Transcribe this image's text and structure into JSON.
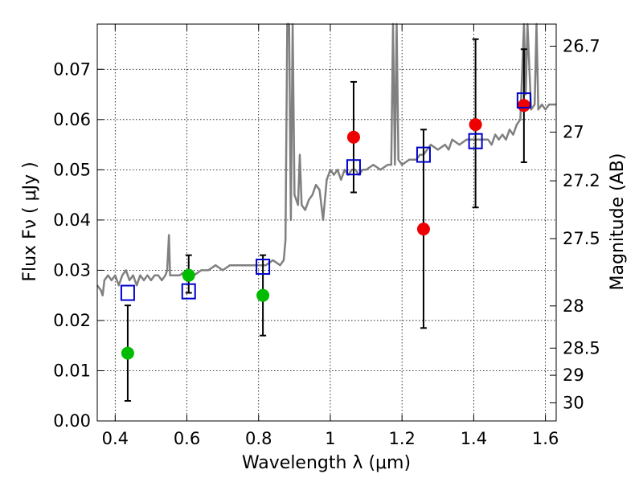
{
  "chart_data": {
    "type": "scatter",
    "title": "",
    "xlabel": "Wavelength  λ (μm)",
    "ylabel": "Flux  Fν  ( μJy )",
    "y2label": "Magnitude (AB)",
    "xlim": [
      0.35,
      1.63
    ],
    "ylim": [
      0.0,
      0.079
    ],
    "grid": true,
    "x_ticks": [
      0.4,
      0.6,
      0.8,
      1.0,
      1.2,
      1.4,
      1.6
    ],
    "x_tick_labels": [
      "0.4",
      "0.6",
      "0.8",
      "1",
      "1.2",
      "1.4",
      "1.6"
    ],
    "y_ticks": [
      0.0,
      0.01,
      0.02,
      0.03,
      0.04,
      0.05,
      0.06,
      0.07
    ],
    "y_tick_labels": [
      "0.00",
      "0.01",
      "0.02",
      "0.03",
      "0.04",
      "0.05",
      "0.06",
      "0.07"
    ],
    "y2_ticks": [
      {
        "label": "26.7",
        "flux": 0.0746
      },
      {
        "label": "27",
        "flux": 0.0575
      },
      {
        "label": "27.2",
        "flux": 0.0478
      },
      {
        "label": "27.5",
        "flux": 0.0363
      },
      {
        "label": "28",
        "flux": 0.0229
      },
      {
        "label": "28.5",
        "flux": 0.0145
      },
      {
        "label": "29",
        "flux": 0.0091
      },
      {
        "label": "30",
        "flux": 0.0036
      }
    ],
    "colors": {
      "spectrum": "#808080",
      "model": "#0000cc",
      "green": "#00bb00",
      "red": "#ee0000",
      "errorbar": "#000000"
    },
    "spectrum": [
      [
        0.35,
        0.027
      ],
      [
        0.36,
        0.026
      ],
      [
        0.365,
        0.025
      ],
      [
        0.37,
        0.028
      ],
      [
        0.38,
        0.029
      ],
      [
        0.39,
        0.028
      ],
      [
        0.4,
        0.029
      ],
      [
        0.41,
        0.027
      ],
      [
        0.42,
        0.029
      ],
      [
        0.43,
        0.03
      ],
      [
        0.44,
        0.028
      ],
      [
        0.45,
        0.029
      ],
      [
        0.46,
        0.027
      ],
      [
        0.47,
        0.029
      ],
      [
        0.48,
        0.028
      ],
      [
        0.49,
        0.029
      ],
      [
        0.5,
        0.028
      ],
      [
        0.51,
        0.029
      ],
      [
        0.52,
        0.029
      ],
      [
        0.53,
        0.028
      ],
      [
        0.54,
        0.029
      ],
      [
        0.545,
        0.03
      ],
      [
        0.55,
        0.037
      ],
      [
        0.553,
        0.029
      ],
      [
        0.56,
        0.029
      ],
      [
        0.58,
        0.029
      ],
      [
        0.6,
        0.03
      ],
      [
        0.62,
        0.029
      ],
      [
        0.64,
        0.03
      ],
      [
        0.66,
        0.03
      ],
      [
        0.68,
        0.031
      ],
      [
        0.7,
        0.03
      ],
      [
        0.72,
        0.031
      ],
      [
        0.74,
        0.031
      ],
      [
        0.76,
        0.031
      ],
      [
        0.78,
        0.031
      ],
      [
        0.8,
        0.031
      ],
      [
        0.82,
        0.031
      ],
      [
        0.84,
        0.032
      ],
      [
        0.86,
        0.031
      ],
      [
        0.87,
        0.032
      ],
      [
        0.875,
        0.036
      ],
      [
        0.88,
        0.079
      ],
      [
        0.885,
        0.079
      ],
      [
        0.89,
        0.04
      ],
      [
        0.895,
        0.079
      ],
      [
        0.9,
        0.045
      ],
      [
        0.91,
        0.043
      ],
      [
        0.915,
        0.053
      ],
      [
        0.92,
        0.043
      ],
      [
        0.93,
        0.042
      ],
      [
        0.94,
        0.044
      ],
      [
        0.95,
        0.045
      ],
      [
        0.96,
        0.047
      ],
      [
        0.97,
        0.046
      ],
      [
        0.98,
        0.04
      ],
      [
        0.99,
        0.048
      ],
      [
        1.0,
        0.05
      ],
      [
        1.01,
        0.049
      ],
      [
        1.02,
        0.05
      ],
      [
        1.03,
        0.048
      ],
      [
        1.04,
        0.05
      ],
      [
        1.05,
        0.049
      ],
      [
        1.06,
        0.05
      ],
      [
        1.07,
        0.05
      ],
      [
        1.08,
        0.049
      ],
      [
        1.09,
        0.05
      ],
      [
        1.1,
        0.05
      ],
      [
        1.12,
        0.051
      ],
      [
        1.14,
        0.05
      ],
      [
        1.16,
        0.051
      ],
      [
        1.17,
        0.051
      ],
      [
        1.175,
        0.079
      ],
      [
        1.18,
        0.051
      ],
      [
        1.185,
        0.079
      ],
      [
        1.19,
        0.052
      ],
      [
        1.2,
        0.051
      ],
      [
        1.22,
        0.052
      ],
      [
        1.24,
        0.052
      ],
      [
        1.25,
        0.053
      ],
      [
        1.26,
        0.053
      ],
      [
        1.27,
        0.054
      ],
      [
        1.28,
        0.055
      ],
      [
        1.3,
        0.054
      ],
      [
        1.32,
        0.055
      ],
      [
        1.33,
        0.054
      ],
      [
        1.34,
        0.056
      ],
      [
        1.36,
        0.055
      ],
      [
        1.38,
        0.056
      ],
      [
        1.4,
        0.056
      ],
      [
        1.42,
        0.056
      ],
      [
        1.44,
        0.056
      ],
      [
        1.45,
        0.055
      ],
      [
        1.46,
        0.057
      ],
      [
        1.47,
        0.056
      ],
      [
        1.48,
        0.057
      ],
      [
        1.49,
        0.056
      ],
      [
        1.5,
        0.058
      ],
      [
        1.51,
        0.057
      ],
      [
        1.52,
        0.059
      ],
      [
        1.53,
        0.06
      ],
      [
        1.54,
        0.079
      ],
      [
        1.545,
        0.065
      ],
      [
        1.55,
        0.079
      ],
      [
        1.56,
        0.062
      ],
      [
        1.57,
        0.063
      ],
      [
        1.575,
        0.079
      ],
      [
        1.58,
        0.062
      ],
      [
        1.59,
        0.063
      ],
      [
        1.6,
        0.062
      ],
      [
        1.61,
        0.063
      ],
      [
        1.63,
        0.063
      ]
    ],
    "model_points": [
      {
        "x": 0.435,
        "y": 0.0255
      },
      {
        "x": 0.605,
        "y": 0.0258
      },
      {
        "x": 0.812,
        "y": 0.0307
      },
      {
        "x": 1.065,
        "y": 0.0505
      },
      {
        "x": 1.26,
        "y": 0.053
      },
      {
        "x": 1.405,
        "y": 0.0557
      },
      {
        "x": 1.54,
        "y": 0.0638
      }
    ],
    "green_points": [
      {
        "x": 0.435,
        "y": 0.0135,
        "ylo": 0.004,
        "yhi": 0.023
      },
      {
        "x": 0.605,
        "y": 0.029,
        "ylo": 0.0255,
        "yhi": 0.033
      },
      {
        "x": 0.812,
        "y": 0.025,
        "ylo": 0.017,
        "yhi": 0.033
      }
    ],
    "red_points": [
      {
        "x": 1.065,
        "y": 0.0565,
        "ylo": 0.0455,
        "yhi": 0.0675
      },
      {
        "x": 1.26,
        "y": 0.0382,
        "ylo": 0.0185,
        "yhi": 0.058
      },
      {
        "x": 1.405,
        "y": 0.059,
        "ylo": 0.0425,
        "yhi": 0.076
      },
      {
        "x": 1.54,
        "y": 0.0628,
        "ylo": 0.0515,
        "yhi": 0.074
      }
    ]
  }
}
